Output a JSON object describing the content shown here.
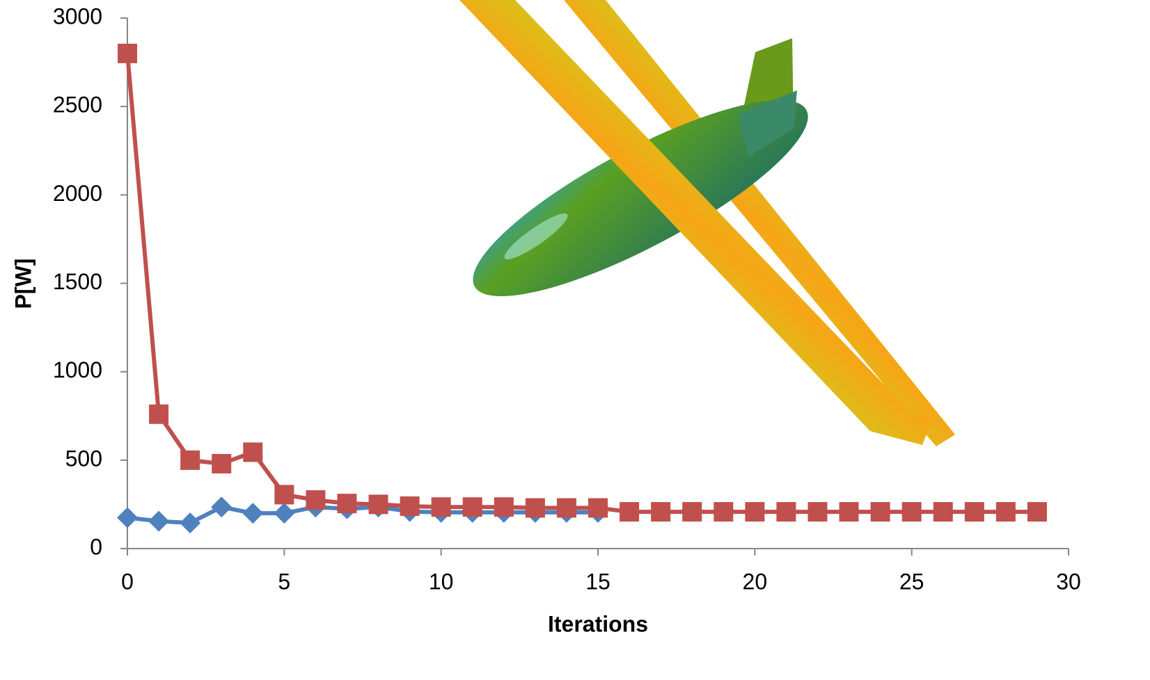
{
  "chart_data": {
    "type": "line",
    "x_label": "Iterations",
    "y_label": "P[W]",
    "x": [
      0,
      1,
      2,
      3,
      4,
      5,
      6,
      7,
      8,
      9,
      10,
      11,
      12,
      13,
      14,
      15,
      16,
      17,
      18,
      19,
      20,
      21,
      22,
      23,
      24,
      25,
      26,
      27,
      28,
      29
    ],
    "series": [
      {
        "color": "#4f81bd",
        "marker": "diamond",
        "values": [
          175,
          155,
          145,
          235,
          200,
          200,
          235,
          225,
          235,
          210,
          205,
          205,
          205,
          205,
          205,
          205,
          null,
          null,
          null,
          null,
          null,
          null,
          null,
          null,
          null,
          null,
          null,
          null,
          null,
          null
        ]
      },
      {
        "color": "#c0504d",
        "marker": "square",
        "values": [
          2800,
          760,
          500,
          480,
          545,
          305,
          275,
          255,
          250,
          240,
          235,
          235,
          235,
          230,
          230,
          230,
          208,
          208,
          208,
          208,
          208,
          208,
          208,
          208,
          208,
          208,
          208,
          208,
          208,
          208
        ]
      }
    ],
    "xlim": [
      0,
      30
    ],
    "xticks": [
      0,
      5,
      10,
      15,
      20,
      25,
      30
    ],
    "ylim": [
      0,
      3000
    ],
    "yticks": [
      0,
      500,
      1000,
      1500,
      2000,
      2500,
      3000
    ]
  }
}
